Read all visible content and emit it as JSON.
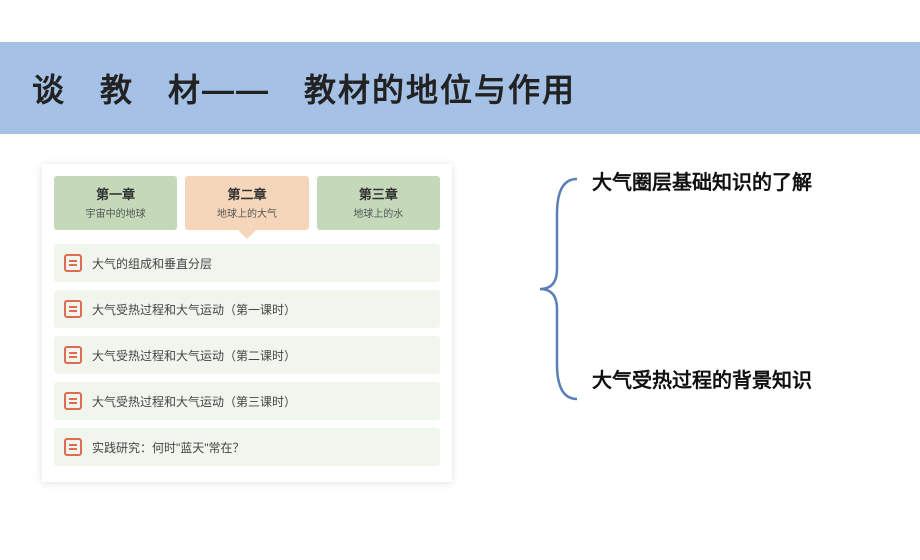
{
  "title_bar": {
    "text": "谈　教　材——　教材的地位与作用",
    "background": "#a5c1e6"
  },
  "tabs": [
    {
      "title": "第一章",
      "sub": "宇宙中的地球",
      "style": "green",
      "active": false
    },
    {
      "title": "第二章",
      "sub": "地球上的大气",
      "style": "orange",
      "active": true
    },
    {
      "title": "第三章",
      "sub": "地球上的水",
      "style": "green",
      "active": false
    }
  ],
  "list_items": [
    "大气的组成和垂直分层",
    "大气受热过程和大气运动（第一课时）",
    "大气受热过程和大气运动（第二课时）",
    "大气受热过程和大气运动（第三课时）",
    "实践研究：何时\"蓝天\"常在？"
  ],
  "right_texts": {
    "top": "大气圈层基础知识的了解",
    "bottom": "大气受热过程的背景知识"
  },
  "colors": {
    "title_bg": "#a5c1e6",
    "tab_green": "#c4d9ba",
    "tab_orange": "#f6d6ba",
    "list_bg": "#f0f6ee",
    "icon_border": "#e06b4f",
    "bracket": "#5b7fb8"
  }
}
